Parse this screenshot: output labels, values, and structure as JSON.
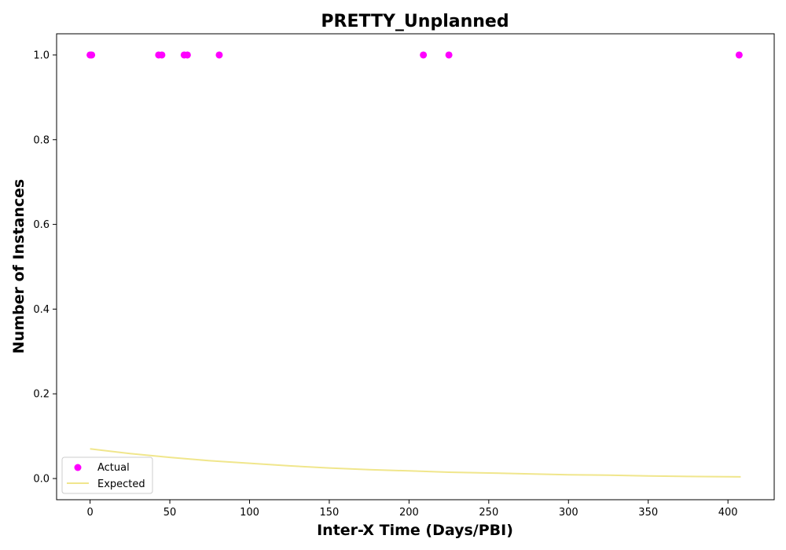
{
  "chart_data": {
    "type": "scatter",
    "title": "PRETTY_Unplanned",
    "xlabel": "Inter-X Time (Days/PBI)",
    "ylabel": "Number of Instances",
    "xlim": [
      -21,
      429
    ],
    "ylim": [
      -0.05,
      1.05
    ],
    "xticks": [
      0,
      50,
      100,
      150,
      200,
      250,
      300,
      350,
      400
    ],
    "xtick_labels": [
      "0",
      "50",
      "100",
      "150",
      "200",
      "250",
      "300",
      "350",
      "400"
    ],
    "yticks": [
      0.0,
      0.2,
      0.4,
      0.6,
      0.8,
      1.0
    ],
    "ytick_labels": [
      "0.0",
      "0.2",
      "0.4",
      "0.6",
      "0.8",
      "1.0"
    ],
    "grid": false,
    "legend_position": "bottom-left",
    "series": [
      {
        "name": "Actual",
        "kind": "scatter",
        "color": "#ff00ff",
        "points": [
          {
            "x": 0,
            "y": 1
          },
          {
            "x": 1,
            "y": 1
          },
          {
            "x": 43,
            "y": 1
          },
          {
            "x": 45,
            "y": 1
          },
          {
            "x": 59,
            "y": 1
          },
          {
            "x": 61,
            "y": 1
          },
          {
            "x": 81,
            "y": 1
          },
          {
            "x": 209,
            "y": 1
          },
          {
            "x": 225,
            "y": 1
          },
          {
            "x": 407,
            "y": 1
          }
        ]
      },
      {
        "name": "Expected",
        "kind": "line",
        "color": "#f0e68c",
        "points": [
          {
            "x": 0,
            "y": 0.07
          },
          {
            "x": 25,
            "y": 0.059
          },
          {
            "x": 50,
            "y": 0.05
          },
          {
            "x": 75,
            "y": 0.042
          },
          {
            "x": 100,
            "y": 0.036
          },
          {
            "x": 125,
            "y": 0.03
          },
          {
            "x": 150,
            "y": 0.025
          },
          {
            "x": 175,
            "y": 0.021
          },
          {
            "x": 200,
            "y": 0.018
          },
          {
            "x": 225,
            "y": 0.015
          },
          {
            "x": 250,
            "y": 0.013
          },
          {
            "x": 275,
            "y": 0.011
          },
          {
            "x": 300,
            "y": 0.009
          },
          {
            "x": 325,
            "y": 0.008
          },
          {
            "x": 350,
            "y": 0.006
          },
          {
            "x": 375,
            "y": 0.005
          },
          {
            "x": 408,
            "y": 0.004
          }
        ]
      }
    ]
  }
}
